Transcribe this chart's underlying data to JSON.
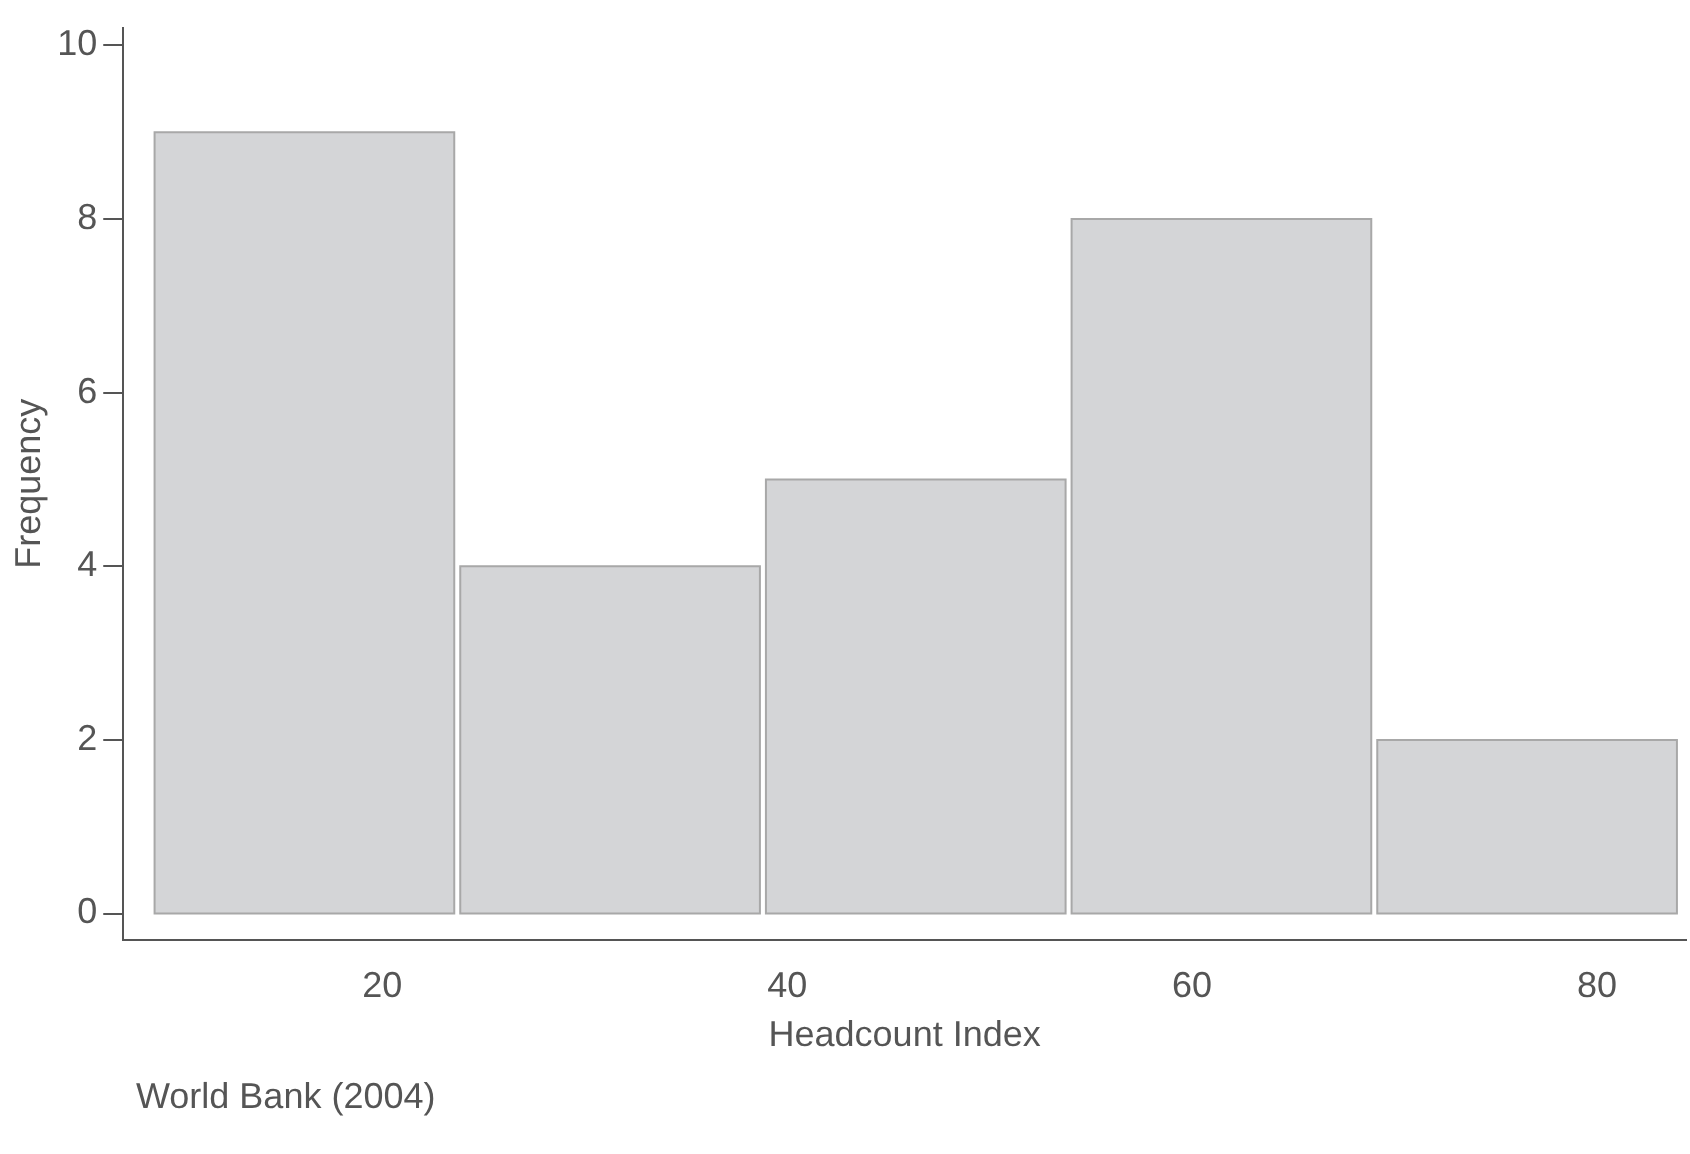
{
  "chart_data": {
    "type": "histogram",
    "xlabel": "Headcount Index",
    "ylabel": "Frequency",
    "bins": [
      8.6,
      23.7,
      38.8,
      53.9,
      69,
      84.1
    ],
    "values": [
      9,
      4,
      5,
      8,
      2
    ],
    "color": "#d4d5d7",
    "xlim": [
      7.2,
      84.4
    ],
    "xticks": [
      20,
      40,
      60,
      80
    ],
    "ylim": [
      -0.3,
      10.2
    ],
    "yticks": [
      0,
      2,
      4,
      6,
      8,
      10
    ],
    "grid": false,
    "legend": false,
    "annotations": [
      "World Bank (2004)"
    ]
  }
}
